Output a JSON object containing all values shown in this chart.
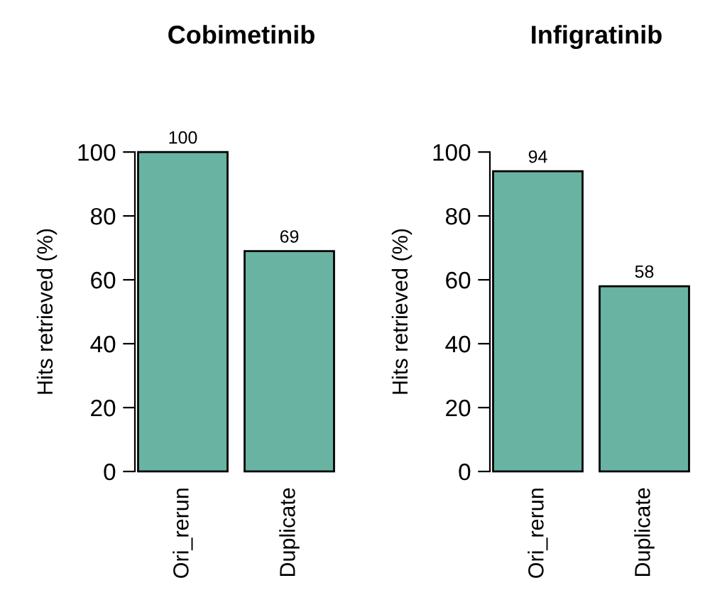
{
  "chart_data": [
    {
      "type": "bar",
      "title": "Cobimetinib",
      "ylabel": "Hits retrieved (%)",
      "categories": [
        "Ori_rerun",
        "Duplicate"
      ],
      "values": [
        100,
        69
      ],
      "color": "#69b3a2",
      "ylim": [
        0,
        100
      ],
      "yticks": [
        0,
        20,
        40,
        60,
        80,
        100
      ],
      "data_labels": true
    },
    {
      "type": "bar",
      "title": "Infigratinib",
      "ylabel": "Hits retrieved (%)",
      "categories": [
        "Ori_rerun",
        "Duplicate"
      ],
      "values": [
        94,
        58
      ],
      "color": "#69b3a2",
      "ylim": [
        0,
        100
      ],
      "yticks": [
        0,
        20,
        40,
        60,
        80,
        100
      ],
      "data_labels": true
    }
  ]
}
